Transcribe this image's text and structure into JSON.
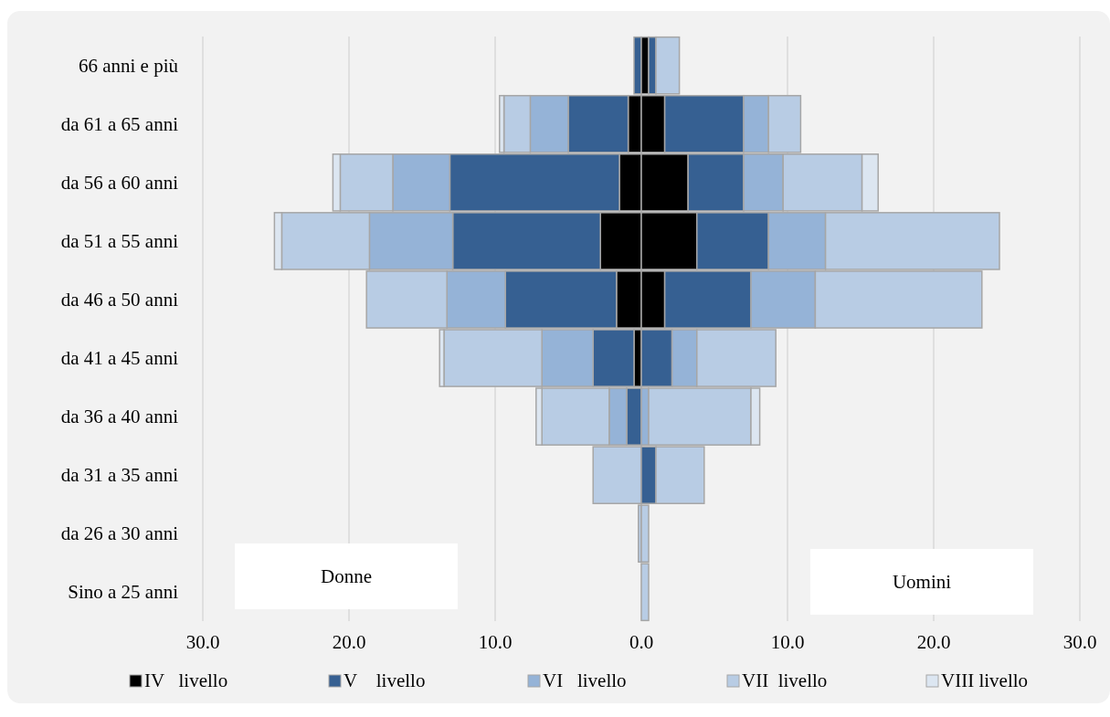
{
  "chart_data": {
    "type": "bar",
    "orientation": "horizontal",
    "stacked": true,
    "categories": [
      "66 anni e più",
      "da 61 a 65 anni",
      "da 56 a 60 anni",
      "da 51 a 55 anni",
      "da 46 a 50 anni",
      "da 41 a 45 anni",
      "da 36 a 40 anni",
      "da 31 a 35 anni",
      "da 26 a 30 anni",
      "Sino a 25 anni"
    ],
    "series": [
      {
        "color": "#000000",
        "values": [
          null,
          -0.9,
          -1.5,
          -2.8,
          -1.7,
          -0.5,
          null,
          null,
          null,
          null
        ]
      },
      {
        "color": "#366092",
        "values": [
          -0.5,
          -4.1,
          -11.6,
          -10.1,
          -7.6,
          -2.8,
          -1.0,
          null,
          null,
          null
        ]
      },
      {
        "color": "#95b3d7",
        "values": [
          null,
          -2.6,
          -3.9,
          -5.7,
          -4.0,
          -3.5,
          -1.2,
          null,
          null,
          null
        ]
      },
      {
        "color": "#b8cce4",
        "values": [
          null,
          -1.8,
          -3.6,
          -6.0,
          -5.5,
          -6.7,
          -4.6,
          -3.3,
          -0.2,
          null
        ]
      },
      {
        "color": "#dce6f1",
        "values": [
          null,
          -0.3,
          -0.5,
          -0.5,
          null,
          -0.3,
          -0.4,
          null,
          null,
          null
        ]
      },
      {
        "name": "IV   livello",
        "color": "#000000",
        "values": [
          0.5,
          1.6,
          3.2,
          3.8,
          1.6,
          null,
          null,
          null,
          null,
          null
        ]
      },
      {
        "name": "V    livello",
        "color": "#366092",
        "values": [
          0.5,
          5.4,
          3.8,
          4.9,
          5.9,
          2.1,
          null,
          1.0,
          null,
          null
        ]
      },
      {
        "name": "VI   livello",
        "color": "#95b3d7",
        "values": [
          null,
          1.7,
          2.7,
          3.9,
          4.4,
          1.7,
          0.5,
          null,
          null,
          null
        ]
      },
      {
        "name": "VII  livello",
        "color": "#b8cce4",
        "values": [
          1.6,
          2.2,
          5.4,
          11.9,
          11.4,
          5.4,
          7.0,
          3.3,
          0.5,
          0.5
        ]
      },
      {
        "name": "VIII livello",
        "color": "#dce6f1",
        "values": [
          null,
          null,
          1.1,
          null,
          null,
          null,
          0.6,
          null,
          null,
          null
        ]
      }
    ],
    "xlim": [
      -30,
      30
    ],
    "xticks": [
      {
        "value": -30,
        "label": "30.0"
      },
      {
        "value": -20,
        "label": "20.0"
      },
      {
        "value": -10,
        "label": "10.0"
      },
      {
        "value": 0,
        "label": "0.0"
      },
      {
        "value": 10,
        "label": "10.0"
      },
      {
        "value": 20,
        "label": "20.0"
      },
      {
        "value": 30,
        "label": "30.0"
      }
    ],
    "grid": "x",
    "legend": "bottom",
    "annotations": [
      "Donne",
      "Uomini"
    ]
  }
}
